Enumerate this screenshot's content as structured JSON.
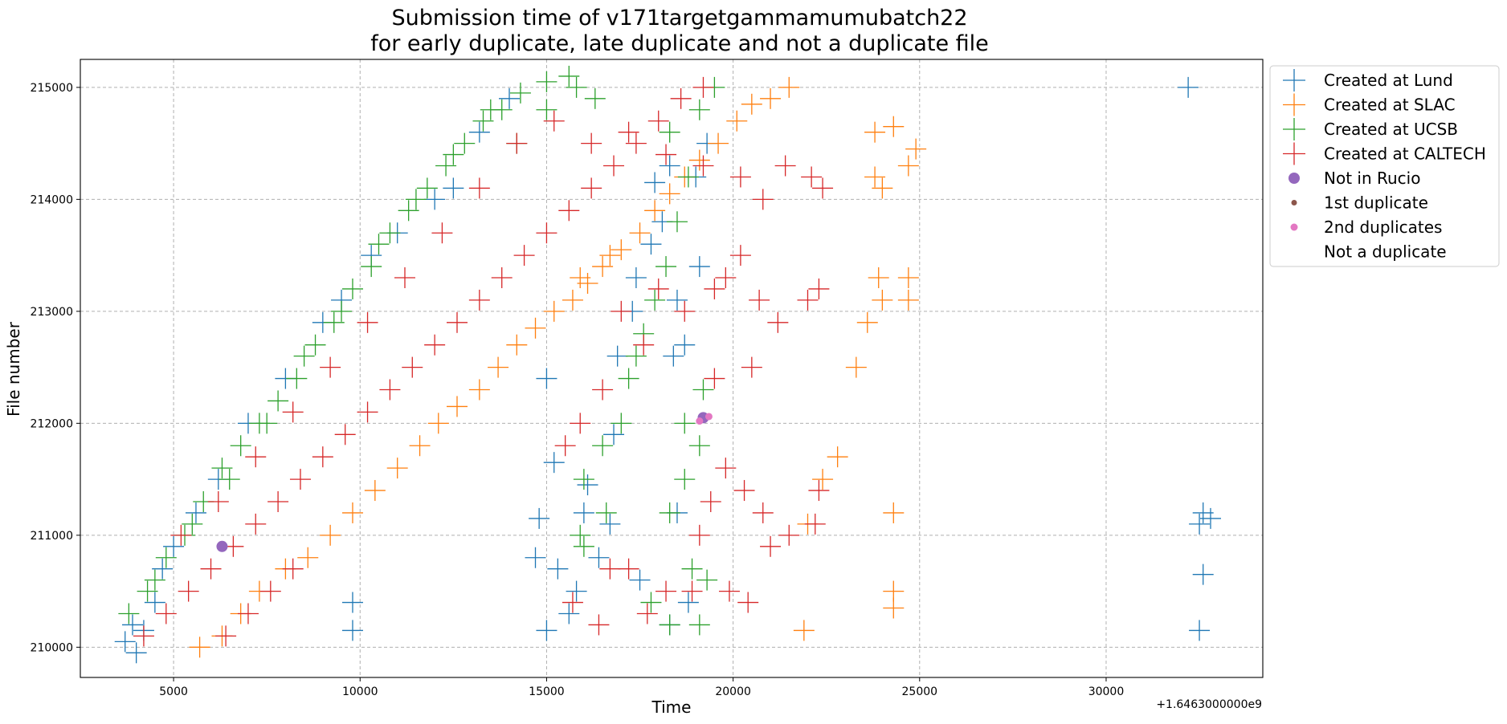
{
  "chart_data": {
    "type": "scatter",
    "title": "Submission time of v171targetgammamumubatch22",
    "subtitle": "for early duplicate, late duplicate and not a duplicate file",
    "xlabel": "Time",
    "ylabel": "File number",
    "x_offset_label": "+1.6463000000e9",
    "xlim": [
      2500,
      34200
    ],
    "ylim": [
      209730,
      215250
    ],
    "x_ticks": [
      5000,
      10000,
      15000,
      20000,
      25000,
      30000
    ],
    "y_ticks": [
      210000,
      211000,
      212000,
      213000,
      214000,
      215000
    ],
    "grid": true,
    "legend_position": "outside-top-right",
    "series": [
      {
        "name": "Created at Lund",
        "color": "#1f77b4",
        "marker": "plus",
        "points": [
          [
            3700,
            210050
          ],
          [
            3900,
            210200
          ],
          [
            4000,
            209950
          ],
          [
            4200,
            210150
          ],
          [
            4500,
            210400
          ],
          [
            4700,
            210700
          ],
          [
            5000,
            210900
          ],
          [
            5600,
            211200
          ],
          [
            6200,
            211500
          ],
          [
            7000,
            212000
          ],
          [
            8000,
            212400
          ],
          [
            9000,
            212900
          ],
          [
            9500,
            213100
          ],
          [
            10300,
            213500
          ],
          [
            11000,
            213700
          ],
          [
            12000,
            214000
          ],
          [
            12500,
            214100
          ],
          [
            13200,
            214600
          ],
          [
            14000,
            214900
          ],
          [
            9800,
            210400
          ],
          [
            9800,
            210150
          ],
          [
            15000,
            212400
          ],
          [
            14800,
            211150
          ],
          [
            15200,
            211650
          ],
          [
            14700,
            210800
          ],
          [
            15300,
            210700
          ],
          [
            15000,
            210150
          ],
          [
            15600,
            210300
          ],
          [
            16000,
            211200
          ],
          [
            16100,
            211450
          ],
          [
            15800,
            210500
          ],
          [
            16400,
            210800
          ],
          [
            16700,
            211100
          ],
          [
            16800,
            211900
          ],
          [
            17300,
            213000
          ],
          [
            17400,
            213300
          ],
          [
            17800,
            213600
          ],
          [
            17900,
            214150
          ],
          [
            16900,
            212600
          ],
          [
            18400,
            212600
          ],
          [
            18500,
            213100
          ],
          [
            18700,
            212700
          ],
          [
            18100,
            213800
          ],
          [
            18300,
            214300
          ],
          [
            19000,
            214200
          ],
          [
            19100,
            213400
          ],
          [
            19300,
            214500
          ],
          [
            18500,
            211200
          ],
          [
            17500,
            210600
          ],
          [
            18300,
            210200
          ],
          [
            18800,
            210400
          ],
          [
            32200,
            215000
          ],
          [
            32600,
            211200
          ],
          [
            32800,
            211150
          ],
          [
            32500,
            211100
          ],
          [
            32600,
            210650
          ],
          [
            32500,
            210150
          ]
        ]
      },
      {
        "name": "Created at SLAC",
        "color": "#ff7f0e",
        "marker": "plus",
        "points": [
          [
            5700,
            210000
          ],
          [
            6300,
            210100
          ],
          [
            6800,
            210300
          ],
          [
            7300,
            210500
          ],
          [
            8000,
            210700
          ],
          [
            8600,
            210800
          ],
          [
            9200,
            211000
          ],
          [
            9800,
            211200
          ],
          [
            10400,
            211400
          ],
          [
            11000,
            211600
          ],
          [
            11600,
            211800
          ],
          [
            12100,
            212000
          ],
          [
            12600,
            212150
          ],
          [
            13200,
            212300
          ],
          [
            13700,
            212500
          ],
          [
            14200,
            212700
          ],
          [
            14700,
            212850
          ],
          [
            15200,
            213000
          ],
          [
            15700,
            213100
          ],
          [
            16100,
            213250
          ],
          [
            16500,
            213400
          ],
          [
            17000,
            213550
          ],
          [
            17500,
            213700
          ],
          [
            17900,
            213900
          ],
          [
            18300,
            214050
          ],
          [
            18700,
            214200
          ],
          [
            19100,
            214350
          ],
          [
            19600,
            214500
          ],
          [
            20100,
            214700
          ],
          [
            20500,
            214850
          ],
          [
            21000,
            214900
          ],
          [
            21500,
            215000
          ],
          [
            15900,
            213300
          ],
          [
            16700,
            213500
          ],
          [
            22400,
            211500
          ],
          [
            22800,
            211700
          ],
          [
            22000,
            211100
          ],
          [
            23300,
            212500
          ],
          [
            23600,
            212900
          ],
          [
            24000,
            213100
          ],
          [
            23900,
            213300
          ],
          [
            24700,
            213100
          ],
          [
            24700,
            213300
          ],
          [
            23800,
            214200
          ],
          [
            24000,
            214100
          ],
          [
            24700,
            214300
          ],
          [
            24900,
            214450
          ],
          [
            23800,
            214600
          ],
          [
            24300,
            214650
          ],
          [
            21900,
            210150
          ],
          [
            24300,
            210500
          ],
          [
            24300,
            210350
          ],
          [
            24300,
            211200
          ]
        ]
      },
      {
        "name": "Created at UCSB",
        "color": "#2ca02c",
        "marker": "plus",
        "points": [
          [
            3800,
            210300
          ],
          [
            4300,
            210500
          ],
          [
            4800,
            210800
          ],
          [
            5300,
            211000
          ],
          [
            5800,
            211300
          ],
          [
            6300,
            211600
          ],
          [
            6800,
            211800
          ],
          [
            7300,
            212000
          ],
          [
            7800,
            212200
          ],
          [
            8300,
            212400
          ],
          [
            8800,
            212700
          ],
          [
            9300,
            212900
          ],
          [
            9800,
            213200
          ],
          [
            10300,
            213400
          ],
          [
            10800,
            213700
          ],
          [
            11300,
            213900
          ],
          [
            11800,
            214100
          ],
          [
            12300,
            214300
          ],
          [
            12800,
            214500
          ],
          [
            13300,
            214700
          ],
          [
            13800,
            214800
          ],
          [
            14300,
            214950
          ],
          [
            15000,
            215050
          ],
          [
            15600,
            215100
          ],
          [
            4500,
            210600
          ],
          [
            5500,
            211100
          ],
          [
            6500,
            211500
          ],
          [
            7500,
            212000
          ],
          [
            8500,
            212600
          ],
          [
            9500,
            213000
          ],
          [
            10500,
            213600
          ],
          [
            11500,
            214000
          ],
          [
            12500,
            214400
          ],
          [
            13500,
            214800
          ],
          [
            14200,
            214500
          ],
          [
            15000,
            214800
          ],
          [
            15800,
            215000
          ],
          [
            16300,
            214900
          ],
          [
            16000,
            211500
          ],
          [
            16500,
            211800
          ],
          [
            17000,
            212000
          ],
          [
            16600,
            211200
          ],
          [
            17200,
            212400
          ],
          [
            17600,
            212800
          ],
          [
            17900,
            213100
          ],
          [
            18200,
            213400
          ],
          [
            18500,
            213800
          ],
          [
            18800,
            214200
          ],
          [
            19100,
            214800
          ],
          [
            19500,
            215000
          ],
          [
            18300,
            214600
          ],
          [
            17400,
            212600
          ],
          [
            16000,
            210900
          ],
          [
            15900,
            211000
          ],
          [
            18300,
            211200
          ],
          [
            18700,
            211500
          ],
          [
            19100,
            211800
          ],
          [
            18700,
            212000
          ],
          [
            19200,
            212300
          ],
          [
            18900,
            210700
          ],
          [
            19300,
            210600
          ],
          [
            19100,
            210200
          ],
          [
            18300,
            210200
          ],
          [
            17800,
            210400
          ]
        ]
      },
      {
        "name": "Created at CALTECH",
        "color": "#d62728",
        "marker": "plus",
        "points": [
          [
            4200,
            210100
          ],
          [
            4800,
            210300
          ],
          [
            5400,
            210500
          ],
          [
            6000,
            210700
          ],
          [
            6600,
            210900
          ],
          [
            7200,
            211100
          ],
          [
            7800,
            211300
          ],
          [
            8400,
            211500
          ],
          [
            9000,
            211700
          ],
          [
            9600,
            211900
          ],
          [
            10200,
            212100
          ],
          [
            10800,
            212300
          ],
          [
            11400,
            212500
          ],
          [
            12000,
            212700
          ],
          [
            12600,
            212900
          ],
          [
            13200,
            213100
          ],
          [
            13800,
            213300
          ],
          [
            14400,
            213500
          ],
          [
            15000,
            213700
          ],
          [
            15600,
            213900
          ],
          [
            16200,
            214100
          ],
          [
            16800,
            214300
          ],
          [
            17400,
            214500
          ],
          [
            18000,
            214700
          ],
          [
            18600,
            214900
          ],
          [
            19200,
            215000
          ],
          [
            6400,
            210100
          ],
          [
            7000,
            210300
          ],
          [
            7600,
            210500
          ],
          [
            8200,
            210700
          ],
          [
            5200,
            211000
          ],
          [
            6200,
            211300
          ],
          [
            7200,
            211700
          ],
          [
            8200,
            212100
          ],
          [
            9200,
            212500
          ],
          [
            10200,
            212900
          ],
          [
            11200,
            213300
          ],
          [
            12200,
            213700
          ],
          [
            13200,
            214100
          ],
          [
            14200,
            214500
          ],
          [
            15200,
            214700
          ],
          [
            16200,
            214500
          ],
          [
            17200,
            214600
          ],
          [
            18200,
            214400
          ],
          [
            19200,
            214300
          ],
          [
            20200,
            214200
          ],
          [
            20800,
            214000
          ],
          [
            21400,
            214300
          ],
          [
            22100,
            214200
          ],
          [
            22400,
            214100
          ],
          [
            19800,
            213300
          ],
          [
            20200,
            213500
          ],
          [
            18700,
            213000
          ],
          [
            19500,
            213200
          ],
          [
            20700,
            213100
          ],
          [
            21200,
            212900
          ],
          [
            22000,
            213100
          ],
          [
            22300,
            213200
          ],
          [
            20500,
            212500
          ],
          [
            19500,
            212400
          ],
          [
            17000,
            213000
          ],
          [
            17600,
            212700
          ],
          [
            18000,
            213200
          ],
          [
            16500,
            212300
          ],
          [
            15900,
            212000
          ],
          [
            15500,
            211800
          ],
          [
            17200,
            210700
          ],
          [
            17700,
            210300
          ],
          [
            18200,
            210500
          ],
          [
            19400,
            211300
          ],
          [
            19800,
            211600
          ],
          [
            20300,
            211400
          ],
          [
            20800,
            211200
          ],
          [
            21500,
            211000
          ],
          [
            22300,
            211400
          ],
          [
            22200,
            211100
          ],
          [
            21000,
            210900
          ],
          [
            19900,
            210500
          ],
          [
            20400,
            210400
          ],
          [
            15700,
            210400
          ],
          [
            16400,
            210200
          ],
          [
            16700,
            210700
          ],
          [
            18900,
            210500
          ],
          [
            19100,
            211000
          ]
        ]
      }
    ],
    "highlight_series": [
      {
        "name": "Not in Rucio",
        "color": "#9467bd",
        "marker": "circle",
        "size": "large",
        "points": [
          [
            6300,
            210900
          ],
          [
            19200,
            212050
          ]
        ]
      },
      {
        "name": "1st duplicate",
        "color": "#8c564b",
        "marker": "circle",
        "size": "small",
        "points": []
      },
      {
        "name": "2nd duplicates",
        "color": "#e377c2",
        "marker": "circle",
        "size": "medium",
        "points": [
          [
            19100,
            212020
          ],
          [
            19350,
            212060
          ]
        ]
      },
      {
        "name": "Not a duplicate",
        "color": "#ffffff",
        "marker": "none",
        "size": "none",
        "points": []
      }
    ]
  }
}
